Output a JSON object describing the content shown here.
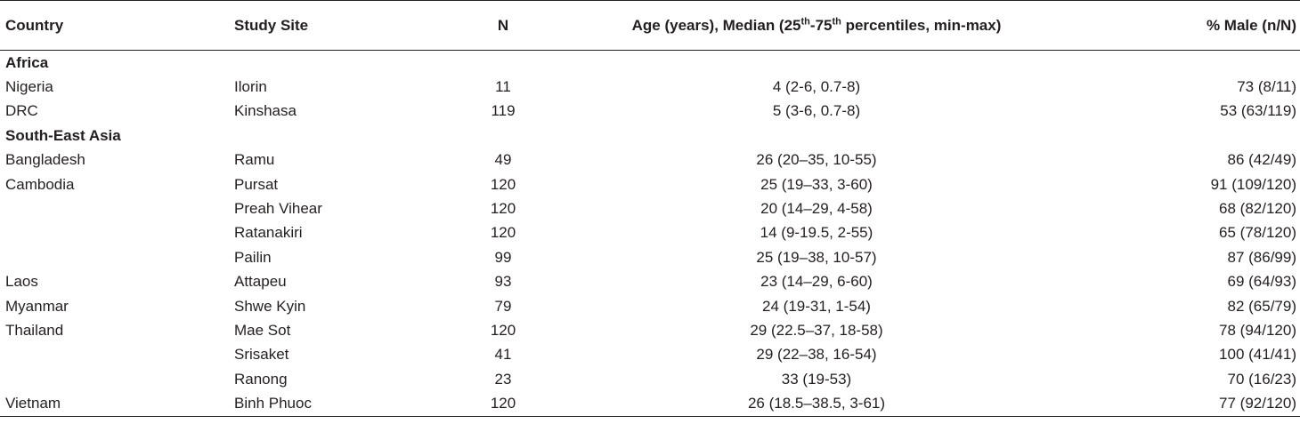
{
  "header": {
    "country": "Country",
    "study_site": "Study Site",
    "n": "N",
    "age_pre": "Age (years), Median (25",
    "age_sup1": "th",
    "age_mid": "-75",
    "age_sup2": "th",
    "age_post": " percentiles, min-max)",
    "male": "% Male (n/N)"
  },
  "rows": [
    {
      "type": "group",
      "country": "Africa"
    },
    {
      "type": "data",
      "country": "Nigeria",
      "site": "Ilorin",
      "n": "11",
      "age": "4 (2-6, 0.7-8)",
      "male": "73 (8/11)"
    },
    {
      "type": "data",
      "country": "DRC",
      "site": "Kinshasa",
      "n": "119",
      "age": "5 (3-6, 0.7-8)",
      "male": "53 (63/119)"
    },
    {
      "type": "group",
      "country": "South-East Asia"
    },
    {
      "type": "data",
      "country": "Bangladesh",
      "site": "Ramu",
      "n": "49",
      "age": "26 (20–35, 10-55)",
      "male": "86 (42/49)"
    },
    {
      "type": "data",
      "country": "Cambodia",
      "site": "Pursat",
      "n": "120",
      "age": "25 (19–33, 3-60)",
      "male": "91 (109/120)"
    },
    {
      "type": "data",
      "country": "",
      "site": "Preah Vihear",
      "n": "120",
      "age": "20 (14–29, 4-58)",
      "male": "68 (82/120)"
    },
    {
      "type": "data",
      "country": "",
      "site": "Ratanakiri",
      "n": "120",
      "age": "14 (9-19.5, 2-55)",
      "male": "65 (78/120)"
    },
    {
      "type": "data",
      "country": "",
      "site": "Pailin",
      "n": "99",
      "age": "25 (19–38, 10-57)",
      "male": "87 (86/99)"
    },
    {
      "type": "data",
      "country": "Laos",
      "site": "Attapeu",
      "n": "93",
      "age": "23 (14–29, 6-60)",
      "male": "69 (64/93)"
    },
    {
      "type": "data",
      "country": "Myanmar",
      "site": "Shwe Kyin",
      "n": "79",
      "age": "24 (19-31, 1-54)",
      "male": "82 (65/79)"
    },
    {
      "type": "data",
      "country": "Thailand",
      "site": "Mae Sot",
      "n": "120",
      "age": "29 (22.5–37, 18-58)",
      "male": "78 (94/120)"
    },
    {
      "type": "data",
      "country": "",
      "site": "Srisaket",
      "n": "41",
      "age": "29 (22–38, 16-54)",
      "male": "100 (41/41)"
    },
    {
      "type": "data",
      "country": "",
      "site": "Ranong",
      "n": "23",
      "age": "33 (19-53)",
      "male": "70 (16/23)"
    },
    {
      "type": "data",
      "country": "Vietnam",
      "site": "Binh Phuoc",
      "n": "120",
      "age": "26 (18.5–38.5, 3-61)",
      "male": "77 (92/120)"
    }
  ]
}
